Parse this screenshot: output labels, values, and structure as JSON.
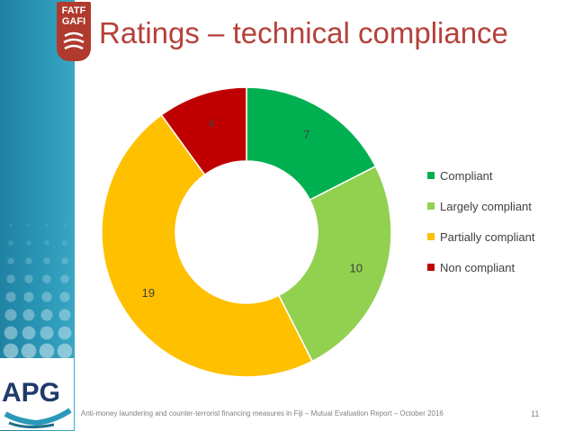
{
  "slide": {
    "title": "Ratings – technical compliance",
    "footer": "Anti-money laundering and counter-terrorist financing measures in Fiji – Mutual Evaluation Report – October 2016",
    "page_number": "11",
    "logo_top": {
      "line1": "FATF",
      "line2": "GAFI"
    },
    "logo_bottom": "APG"
  },
  "colors": {
    "title": "#b5413a",
    "sidebar": "#2b98b8",
    "compliant": "#00b050",
    "largely_compliant": "#92d050",
    "partially_compliant": "#ffc000",
    "non_compliant": "#c00000"
  },
  "chart_data": {
    "type": "pie",
    "donut": true,
    "title": "",
    "categories": [
      "Compliant",
      "Largely compliant",
      "Partially compliant",
      "Non compliant"
    ],
    "values": [
      7,
      10,
      19,
      4
    ],
    "colors": [
      "#00b050",
      "#92d050",
      "#ffc000",
      "#c00000"
    ],
    "data_labels": [
      "7",
      "10",
      "19",
      "4"
    ],
    "legend_position": "right"
  }
}
